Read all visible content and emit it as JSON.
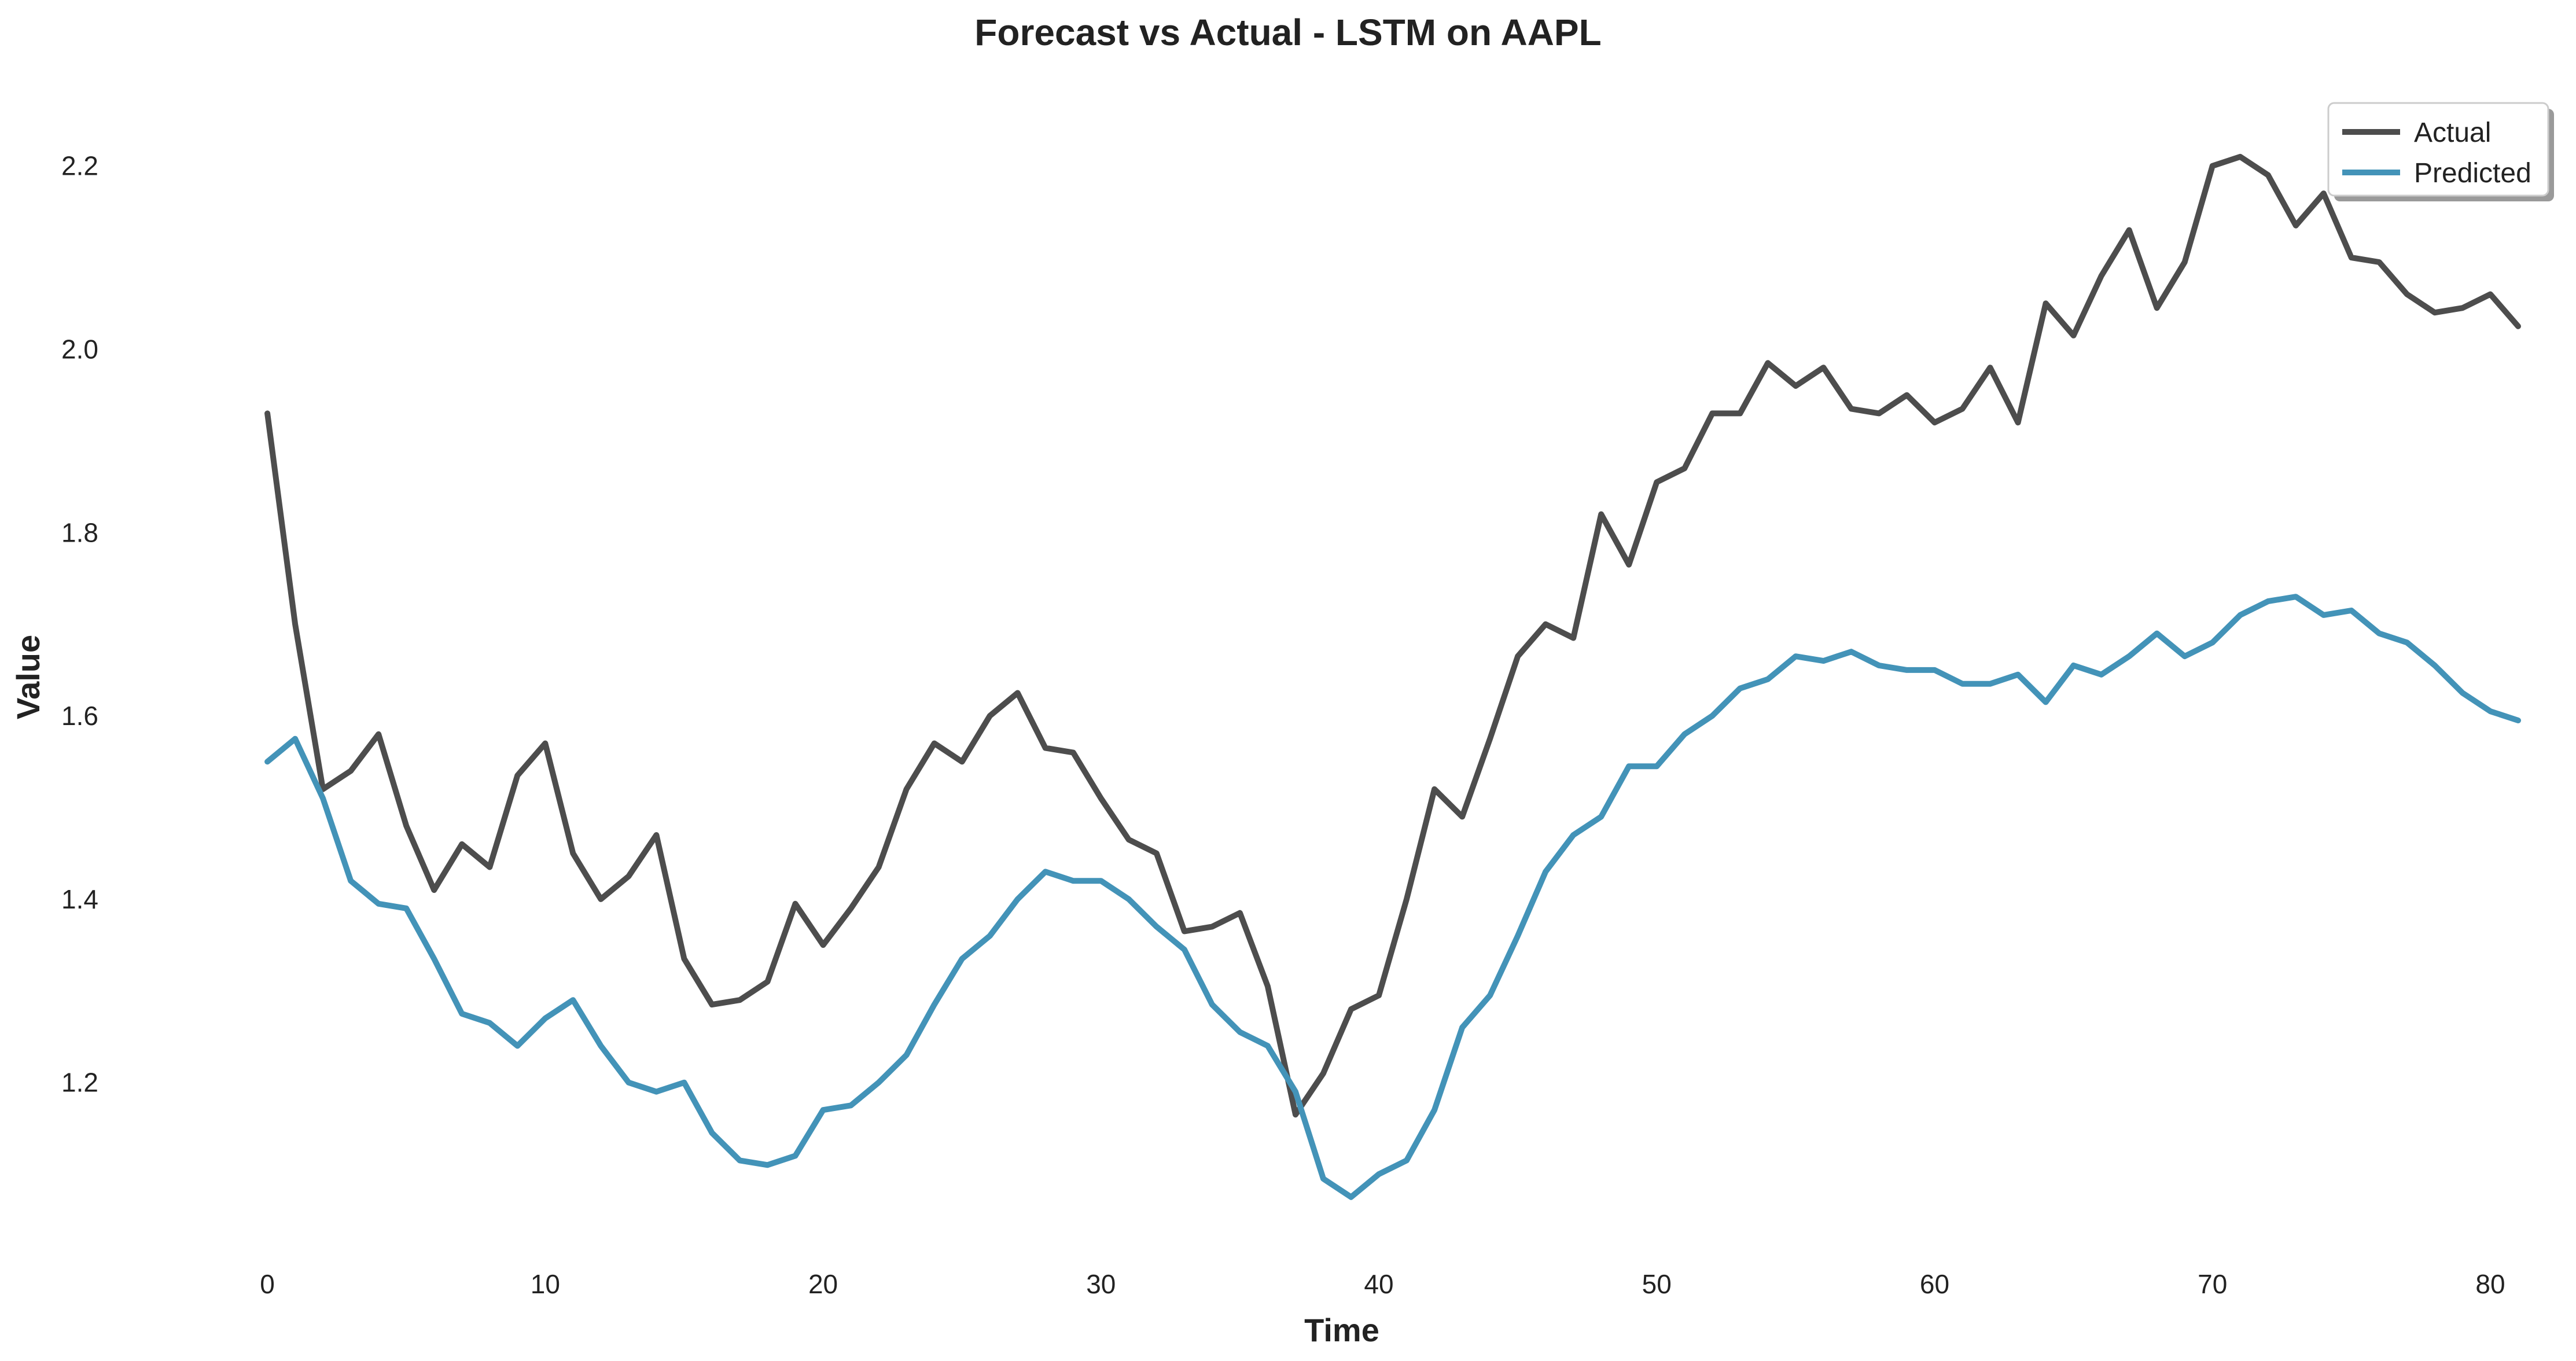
{
  "chart_data": {
    "type": "line",
    "title": "Forecast vs Actual - LSTM on AAPL",
    "xlabel": "Time",
    "ylabel": "Value",
    "xlim": [
      -4,
      82
    ],
    "ylim": [
      1.03,
      2.28
    ],
    "xticks": [
      0,
      10,
      20,
      30,
      40,
      50,
      60,
      70,
      80
    ],
    "yticks": [
      1.2,
      1.4,
      1.6,
      1.8,
      2.0,
      2.2
    ],
    "ytick_labels": [
      "1.2",
      "1.4",
      "1.6",
      "1.8",
      "2.0",
      "2.2"
    ],
    "grid": false,
    "legend_position": "top-right",
    "x": [
      0,
      1,
      2,
      3,
      4,
      5,
      6,
      7,
      8,
      9,
      10,
      11,
      12,
      13,
      14,
      15,
      16,
      17,
      18,
      19,
      20,
      21,
      22,
      23,
      24,
      25,
      26,
      27,
      28,
      29,
      30,
      31,
      32,
      33,
      34,
      35,
      36,
      37,
      38,
      39,
      40,
      41,
      42,
      43,
      44,
      45,
      46,
      47,
      48,
      49,
      50,
      51,
      52,
      53,
      54,
      55,
      56,
      57,
      58,
      59,
      60,
      61,
      62,
      63,
      64,
      65,
      66,
      67,
      68,
      69,
      70,
      71,
      72,
      73,
      74,
      75,
      76,
      77,
      78,
      79,
      80,
      81
    ],
    "series": [
      {
        "name": "Actual",
        "color": "#4d4d4d",
        "values": [
          1.93,
          1.7,
          1.52,
          1.54,
          1.58,
          1.48,
          1.41,
          1.46,
          1.435,
          1.535,
          1.57,
          1.45,
          1.4,
          1.425,
          1.47,
          1.335,
          1.285,
          1.29,
          1.31,
          1.395,
          1.35,
          1.39,
          1.435,
          1.52,
          1.57,
          1.55,
          1.6,
          1.625,
          1.565,
          1.56,
          1.51,
          1.465,
          1.45,
          1.365,
          1.37,
          1.385,
          1.305,
          1.165,
          1.21,
          1.28,
          1.295,
          1.4,
          1.52,
          1.49,
          1.575,
          1.665,
          1.7,
          1.685,
          1.82,
          1.765,
          1.855,
          1.87,
          1.93,
          1.93,
          1.985,
          1.96,
          1.98,
          1.935,
          1.93,
          1.95,
          1.92,
          1.935,
          1.98,
          1.92,
          2.05,
          2.015,
          2.08,
          2.13,
          2.045,
          2.095,
          2.2,
          2.21,
          2.19,
          2.135,
          2.17,
          2.1,
          2.095,
          2.06,
          2.04,
          2.045,
          2.06,
          2.025
        ]
      },
      {
        "name": "Predicted",
        "color": "#4393b8",
        "values": [
          1.55,
          1.575,
          1.51,
          1.42,
          1.395,
          1.39,
          1.335,
          1.275,
          1.265,
          1.24,
          1.27,
          1.29,
          1.24,
          1.2,
          1.19,
          1.2,
          1.145,
          1.115,
          1.11,
          1.12,
          1.17,
          1.175,
          1.2,
          1.23,
          1.285,
          1.335,
          1.36,
          1.4,
          1.43,
          1.42,
          1.42,
          1.4,
          1.37,
          1.345,
          1.285,
          1.255,
          1.24,
          1.19,
          1.095,
          1.075,
          1.1,
          1.115,
          1.17,
          1.26,
          1.295,
          1.36,
          1.43,
          1.47,
          1.49,
          1.545,
          1.545,
          1.58,
          1.6,
          1.63,
          1.64,
          1.665,
          1.66,
          1.67,
          1.655,
          1.65,
          1.65,
          1.635,
          1.635,
          1.645,
          1.615,
          1.655,
          1.645,
          1.665,
          1.69,
          1.665,
          1.68,
          1.71,
          1.725,
          1.73,
          1.71,
          1.715,
          1.69,
          1.68,
          1.655,
          1.625,
          1.605,
          1.595
        ]
      }
    ]
  }
}
